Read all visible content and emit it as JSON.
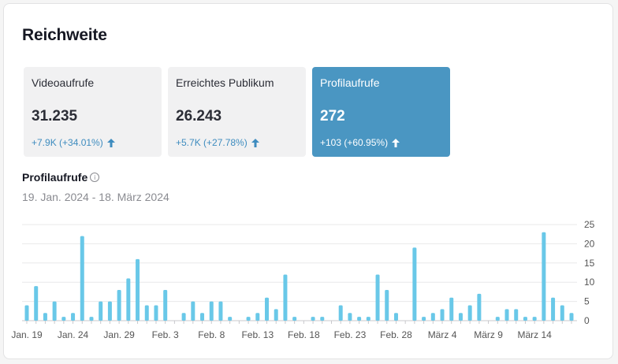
{
  "title": "Reichweite",
  "metrics": [
    {
      "label": "Videoaufrufe",
      "value": "31.235",
      "delta": "+7.9K  (+34.01%)",
      "active": false
    },
    {
      "label": "Erreichtes Publikum",
      "value": "26.243",
      "delta": "+5.7K  (+27.78%)",
      "active": false
    },
    {
      "label": "Profilaufrufe",
      "value": "272",
      "delta": "+103  (+60.95%)",
      "active": true
    }
  ],
  "section": {
    "title": "Profilaufrufe",
    "date_range": "19. Jan. 2024 - 18. März 2024"
  },
  "colors": {
    "bar": "#69c8e8",
    "accent": "#4a96c2",
    "grid": "#e8e8ea",
    "axis": "#c8c8cc",
    "tick_text": "#555555"
  },
  "icons": {
    "delta": "arrow-up-icon",
    "info": "info-icon"
  },
  "chart_data": {
    "type": "bar",
    "title": "",
    "xlabel": "",
    "ylabel": "",
    "ylim": [
      0,
      25
    ],
    "yticks": [
      0,
      5,
      10,
      15,
      20,
      25
    ],
    "grid": true,
    "x_tick_labels": [
      {
        "index": 0,
        "label": "Jan. 19"
      },
      {
        "index": 5,
        "label": "Jan. 24"
      },
      {
        "index": 10,
        "label": "Jan. 29"
      },
      {
        "index": 15,
        "label": "Feb. 3"
      },
      {
        "index": 20,
        "label": "Feb. 8"
      },
      {
        "index": 25,
        "label": "Feb. 13"
      },
      {
        "index": 30,
        "label": "Feb. 18"
      },
      {
        "index": 35,
        "label": "Feb. 23"
      },
      {
        "index": 40,
        "label": "Feb. 28"
      },
      {
        "index": 45,
        "label": "März 4"
      },
      {
        "index": 50,
        "label": "März 9"
      },
      {
        "index": 55,
        "label": "März 14"
      }
    ],
    "values": [
      4,
      9,
      2,
      5,
      1,
      2,
      22,
      1,
      5,
      5,
      8,
      11,
      16,
      4,
      4,
      8,
      0,
      2,
      5,
      2,
      5,
      5,
      1,
      0,
      1,
      2,
      6,
      3,
      12,
      1,
      0,
      1,
      1,
      0,
      4,
      2,
      1,
      1,
      12,
      8,
      2,
      0,
      19,
      1,
      2,
      3,
      6,
      2,
      4,
      7,
      0,
      1,
      3,
      3,
      1,
      1,
      23,
      6,
      4,
      2
    ]
  }
}
